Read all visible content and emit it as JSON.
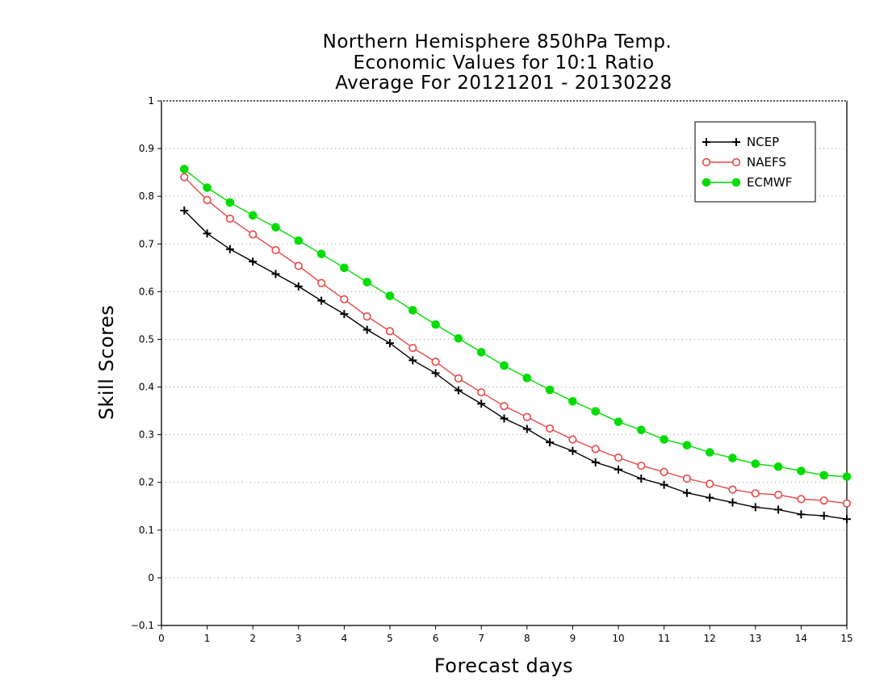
{
  "chart_data": {
    "type": "line",
    "title_lines": [
      "Northern Hemisphere 850hPa Temp.",
      "Economic Values for 10:1 Ratio",
      "Average For 20121201 - 20130228"
    ],
    "xlabel": "Forecast days",
    "ylabel": "Skill Scores",
    "xlim": [
      0,
      15
    ],
    "ylim": [
      -0.1,
      1
    ],
    "xticks": [
      "0",
      "1",
      "2",
      "3",
      "4",
      "5",
      "6",
      "7",
      "8",
      "9",
      "10",
      "11",
      "12",
      "13",
      "14",
      "15"
    ],
    "yticks": [
      "−0.1",
      "0",
      "0.1",
      "0.2",
      "0.3",
      "0.4",
      "0.5",
      "0.6",
      "0.7",
      "0.8",
      "0.9",
      "1"
    ],
    "grid": "horizontal dotted",
    "legend_position": "top-right",
    "x": [
      0.5,
      1,
      1.5,
      2,
      2.5,
      3,
      3.5,
      4,
      4.5,
      5,
      5.5,
      6,
      6.5,
      7,
      7.5,
      8,
      8.5,
      9,
      9.5,
      10,
      10.5,
      11,
      11.5,
      12,
      12.5,
      13,
      13.5,
      14,
      14.5,
      15
    ],
    "series": [
      {
        "name": "NCEP",
        "color": "#000000",
        "marker": "plus",
        "values": [
          0.77,
          0.722,
          0.689,
          0.663,
          0.637,
          0.611,
          0.581,
          0.553,
          0.52,
          0.492,
          0.456,
          0.429,
          0.393,
          0.365,
          0.334,
          0.312,
          0.284,
          0.266,
          0.242,
          0.227,
          0.208,
          0.195,
          0.178,
          0.168,
          0.158,
          0.148,
          0.143,
          0.133,
          0.13,
          0.123
        ]
      },
      {
        "name": "NAEFS",
        "color": "#e64646",
        "marker": "open-circle",
        "values": [
          0.84,
          0.792,
          0.753,
          0.72,
          0.687,
          0.654,
          0.618,
          0.584,
          0.548,
          0.517,
          0.482,
          0.453,
          0.418,
          0.389,
          0.36,
          0.337,
          0.313,
          0.29,
          0.27,
          0.252,
          0.235,
          0.222,
          0.208,
          0.197,
          0.185,
          0.177,
          0.174,
          0.165,
          0.162,
          0.156
        ]
      },
      {
        "name": "ECMWF",
        "color": "#00dc00",
        "marker": "filled-circle",
        "values": [
          0.857,
          0.818,
          0.787,
          0.76,
          0.735,
          0.707,
          0.679,
          0.65,
          0.62,
          0.591,
          0.561,
          0.531,
          0.502,
          0.473,
          0.445,
          0.419,
          0.394,
          0.37,
          0.349,
          0.327,
          0.31,
          0.29,
          0.278,
          0.263,
          0.251,
          0.239,
          0.233,
          0.224,
          0.215,
          0.212
        ]
      }
    ]
  }
}
